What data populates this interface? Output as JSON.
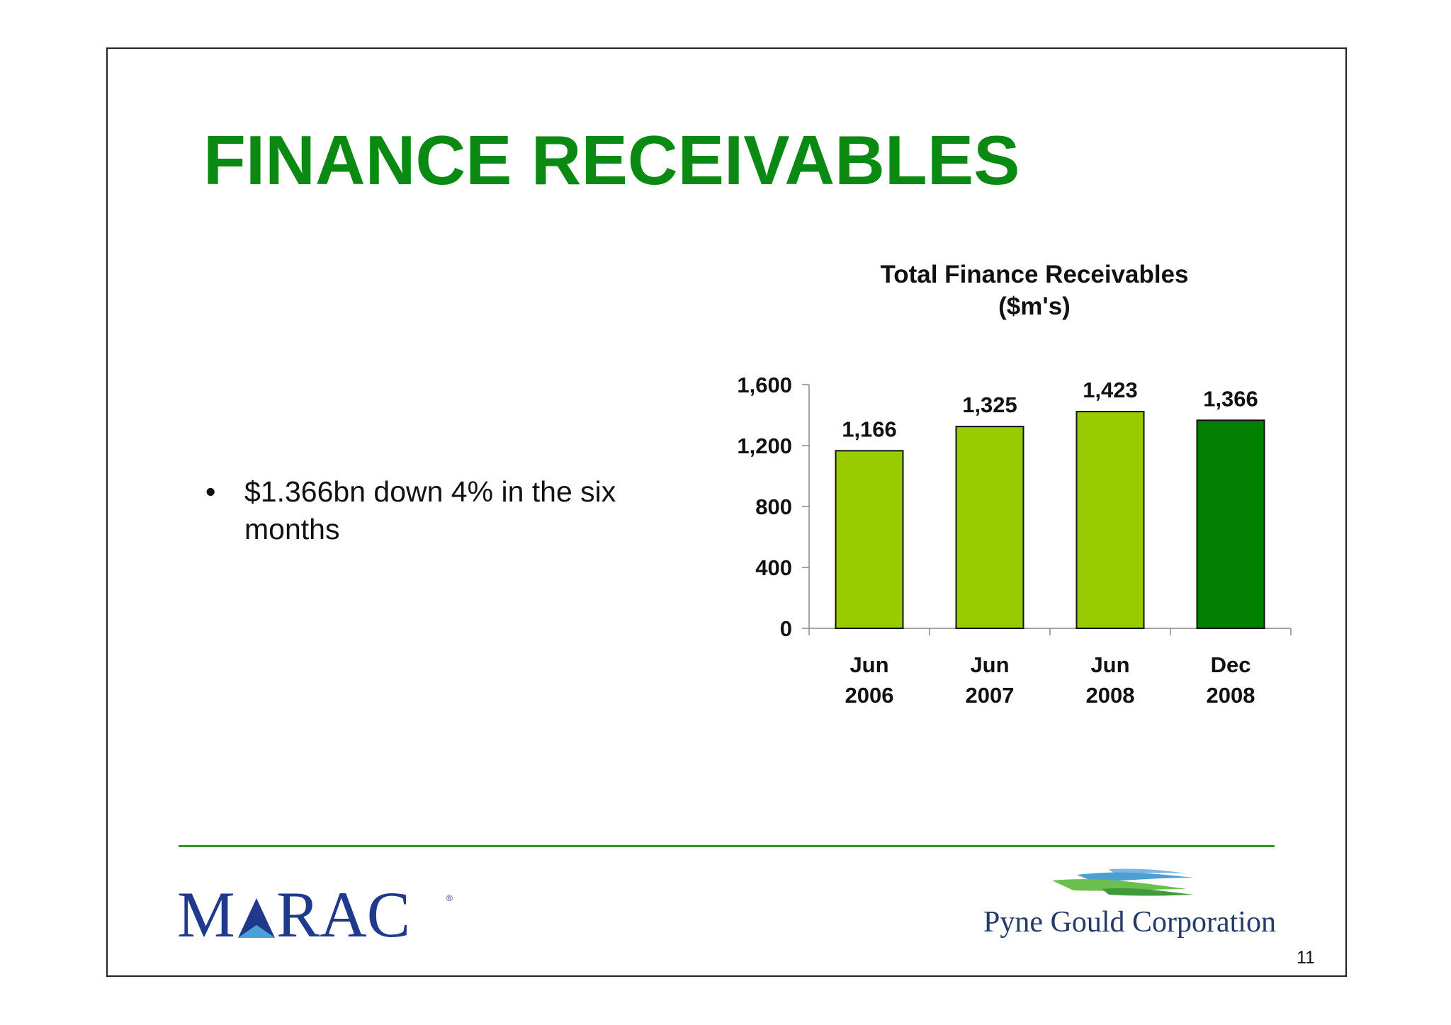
{
  "slide": {
    "title": "FINANCE RECEIVABLES",
    "bullets": [
      "$1.366bn down 4% in the six months"
    ],
    "page_number": "11"
  },
  "logos": {
    "left": "MARAC",
    "left_mark": "®",
    "right": "Pyne Gould Corporation"
  },
  "colors": {
    "title": "#0a8a12",
    "bar_light": "#99cc00",
    "bar_dark": "#007f00",
    "divider": "#2e9a22",
    "marac_blue": "#1f3a8c"
  },
  "chart_data": {
    "type": "bar",
    "title": "Total Finance Receivables",
    "subtitle": "($m's)",
    "categories": [
      [
        "Jun",
        "2006"
      ],
      [
        "Jun",
        "2007"
      ],
      [
        "Jun",
        "2008"
      ],
      [
        "Dec",
        "2008"
      ]
    ],
    "values": [
      1166,
      1325,
      1423,
      1366
    ],
    "value_labels": [
      "1,166",
      "1,325",
      "1,423",
      "1,366"
    ],
    "bar_colors": [
      "#99cc00",
      "#99cc00",
      "#99cc00",
      "#007f00"
    ],
    "ylim": [
      0,
      1600
    ],
    "yticks": [
      0,
      400,
      800,
      1200,
      1600
    ],
    "ytick_labels": [
      "0",
      "400",
      "800",
      "1,200",
      "1,600"
    ],
    "grid": false,
    "xlabel": "",
    "ylabel": ""
  }
}
